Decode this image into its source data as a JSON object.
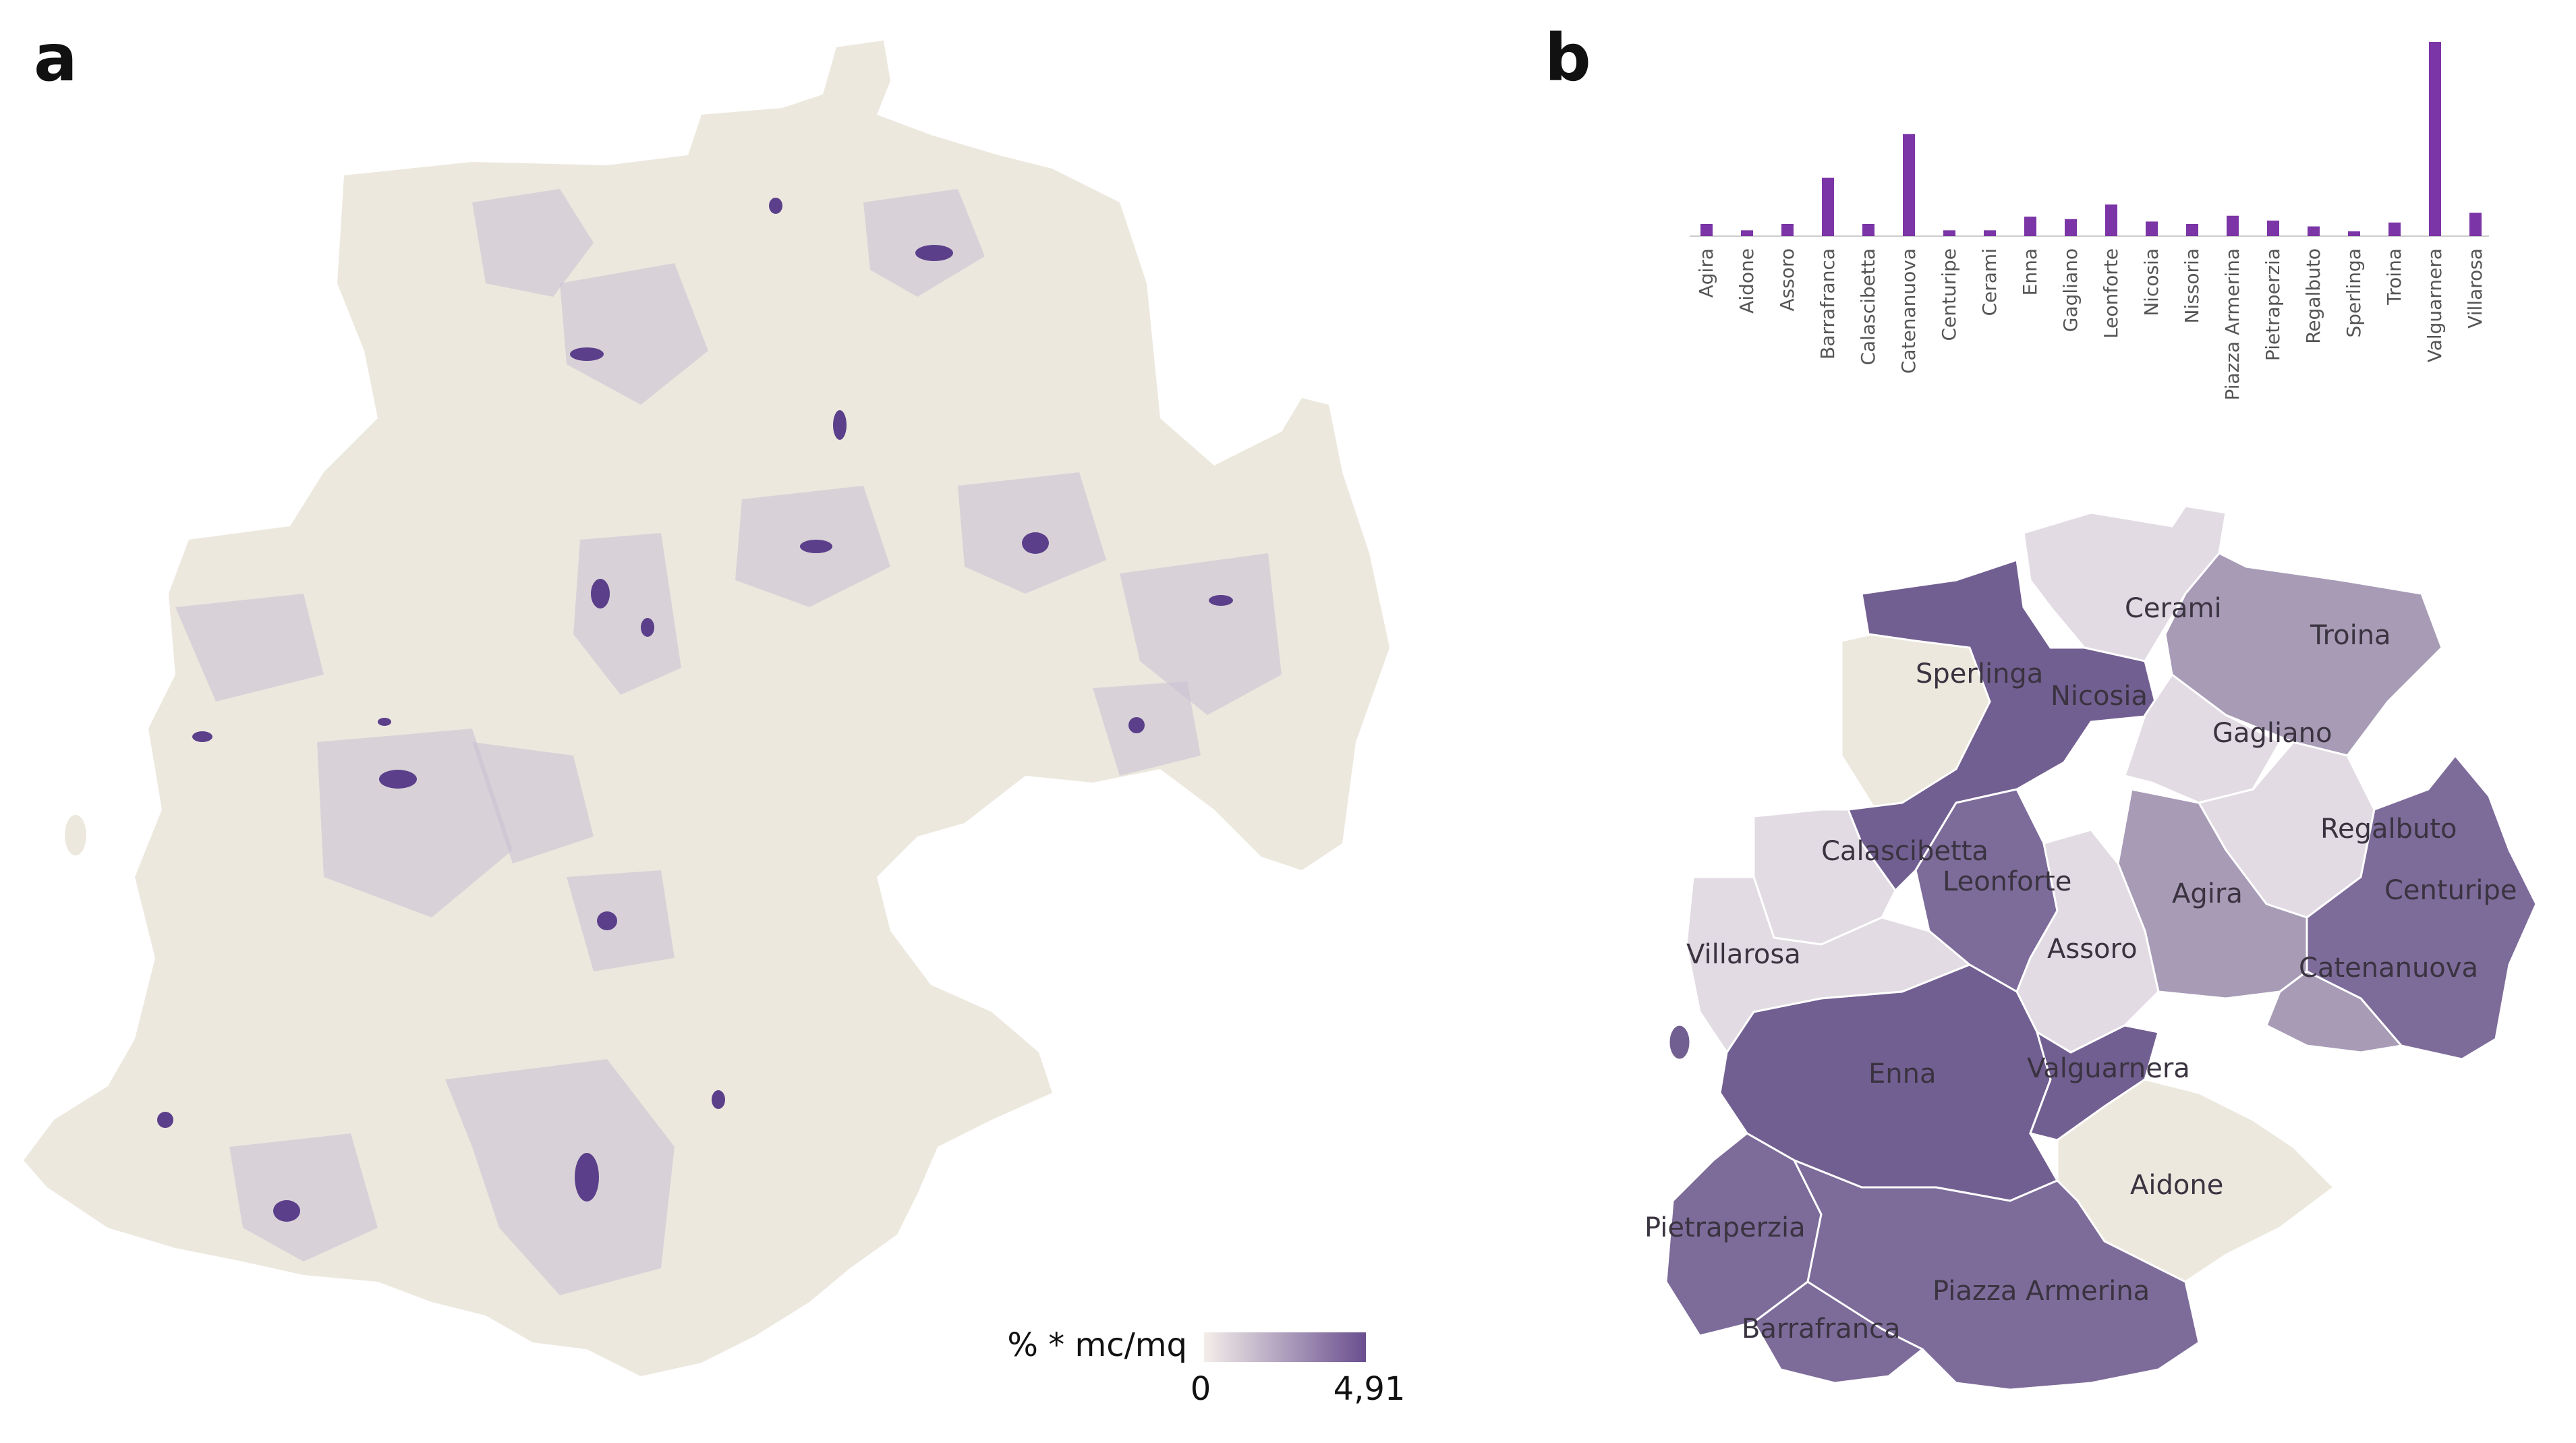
{
  "panels": {
    "a": "a",
    "b": "b"
  },
  "legend": {
    "title": "% * mc/mq",
    "min_label": "0",
    "max_label": "4,91",
    "color_low": "#f3eeea",
    "color_high": "#6a4f8f"
  },
  "colors": {
    "base": "#ece8de",
    "light_purple": "#c9bfd4",
    "mid_purple": "#a79bb6",
    "dark_purple": "#7d6b9a",
    "darkest_purple": "#725f91",
    "bar": "#7b35a6",
    "hotspot": "#5b3f8a"
  },
  "chart_data": {
    "type": "bar",
    "title": "",
    "xlabel": "",
    "ylabel": "",
    "categories": [
      "Agira",
      "Aidone",
      "Assoro",
      "Barrafranca",
      "Calascibetta",
      "Catenanuova",
      "Centuripe",
      "Cerami",
      "Enna",
      "Gagliano",
      "Leonforte",
      "Nicosia",
      "Nissoria",
      "Piazza Armerina",
      "Pietraperzia",
      "Regalbuto",
      "Sperlinga",
      "Troina",
      "Valguarnera",
      "Villarosa"
    ],
    "values": [
      0.25,
      0.12,
      0.25,
      1.2,
      0.25,
      2.1,
      0.12,
      0.12,
      0.4,
      0.35,
      0.65,
      0.3,
      0.25,
      0.42,
      0.32,
      0.2,
      0.1,
      0.28,
      4.0,
      0.48
    ],
    "ylim": [
      0,
      4.0
    ]
  },
  "municipalities": [
    {
      "name": "Cerami",
      "level": "light"
    },
    {
      "name": "Troina",
      "level": "mid"
    },
    {
      "name": "Sperlinga",
      "level": "base"
    },
    {
      "name": "Nicosia",
      "level": "darkest"
    },
    {
      "name": "Gagliano",
      "level": "light"
    },
    {
      "name": "Regalbuto",
      "level": "light"
    },
    {
      "name": "Calascibetta",
      "level": "light"
    },
    {
      "name": "Leonforte",
      "level": "dark"
    },
    {
      "name": "Agira",
      "level": "mid"
    },
    {
      "name": "Centuripe",
      "level": "dark"
    },
    {
      "name": "Assoro",
      "level": "light"
    },
    {
      "name": "Villarosa",
      "level": "light"
    },
    {
      "name": "Catenanuova",
      "level": "mid"
    },
    {
      "name": "Enna",
      "level": "darkest"
    },
    {
      "name": "Valguarnera",
      "level": "darkest"
    },
    {
      "name": "Aidone",
      "level": "base"
    },
    {
      "name": "Pietraperzia",
      "level": "dark"
    },
    {
      "name": "Piazza Armerina",
      "level": "dark"
    },
    {
      "name": "Barrafranca",
      "level": "dark"
    }
  ]
}
